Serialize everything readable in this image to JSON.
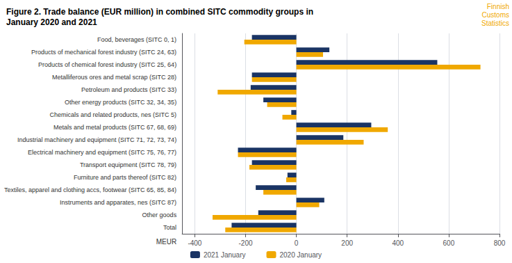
{
  "chart_data": {
    "type": "bar",
    "orientation": "horizontal",
    "title": "Figure 2. Trade balance (EUR million) in combined SITC commodity groups in\nJanuary 2020 and 2021",
    "annotations": [
      "Finnish",
      "Customs",
      "Statistics"
    ],
    "xlabel": "MEUR",
    "categories": [
      "Food, beverages (SITC 0, 1)",
      "Products of mechanical forest industry (SITC 24, 63)",
      "Products of chemical forest industry (SITC 25, 64)",
      "Metalliferous ores and metal scrap (SITC 28)",
      "Petroleum and products (SITC 33)",
      "Other energy products (SITC 32, 34, 35)",
      "Chemicals and related products, nes (SITC 5)",
      "Metals and metal products (SITC 67, 68, 69)",
      "Industrial machinery and equipment (SITC 71, 72, 73, 74)",
      "Electrical machinery and equipment (SITC 75, 76, 77)",
      "Transport equipment (SITC 78, 79)",
      "Furniture and parts thereof (SITC 82)",
      "Textiles, apparel and clothing accs, footwear (SITC 65, 85, 84)",
      "Instruments and apparates, nes (SITC 87)",
      "Other goods",
      "Total"
    ],
    "series": [
      {
        "name": "2021 January",
        "color": "#1a3464",
        "values": [
          -175,
          130,
          555,
          -175,
          -180,
          -130,
          -20,
          295,
          185,
          -230,
          -175,
          -35,
          -160,
          110,
          -150,
          -255
        ]
      },
      {
        "name": "2020 January",
        "color": "#f0a800",
        "values": [
          -205,
          105,
          725,
          -175,
          -310,
          -115,
          -55,
          360,
          265,
          -230,
          -185,
          -40,
          -130,
          90,
          -330,
          -280
        ]
      }
    ],
    "xlim": [
      -450,
      800
    ],
    "xticks": [
      -400,
      -200,
      0,
      200,
      400,
      600,
      800
    ],
    "grid": true,
    "legend": "bottom"
  }
}
